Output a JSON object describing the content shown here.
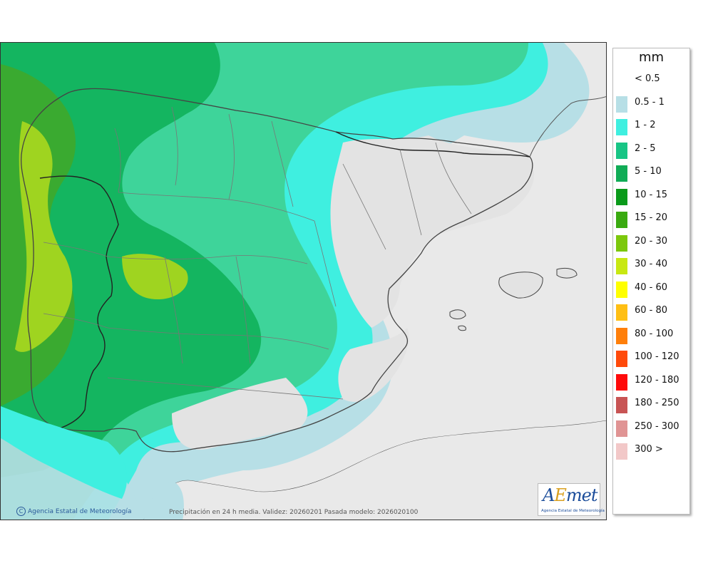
{
  "map": {
    "credit": "Agencia Estatal de Meteorología",
    "copyright_symbol": "C",
    "validity": "Precipitación en 24 h media. Validez: 20260201 Pasada modelo: 2026020100",
    "logo": {
      "text_a": "A",
      "text_e": "E",
      "text_rest": "met",
      "subtitle": "Agencia Estatal de Meteorología"
    }
  },
  "legend": {
    "unit": "mm",
    "items": [
      {
        "label": "< 0.5",
        "color": "#ffffff"
      },
      {
        "label": "0.5 - 1",
        "color": "#b7dfe6"
      },
      {
        "label": "1 - 2",
        "color": "#3fefe0"
      },
      {
        "label": "2 - 5",
        "color": "#18c585"
      },
      {
        "label": "5 - 10",
        "color": "#10ac56"
      },
      {
        "label": "10 - 15",
        "color": "#0a9a1a"
      },
      {
        "label": "15 - 20",
        "color": "#3aaa10"
      },
      {
        "label": "20 - 30",
        "color": "#7cc80c"
      },
      {
        "label": "30 - 40",
        "color": "#c8e812"
      },
      {
        "label": "40 - 60",
        "color": "#ffff00"
      },
      {
        "label": "60 - 80",
        "color": "#ffbf14"
      },
      {
        "label": "80 - 100",
        "color": "#ff7f0a"
      },
      {
        "label": "100 - 120",
        "color": "#ff4a0a"
      },
      {
        "label": "120 - 180",
        "color": "#ff0a0a"
      },
      {
        "label": "180 - 250",
        "color": "#c85454"
      },
      {
        "label": "250 - 300",
        "color": "#e09494"
      },
      {
        "label": "300 >",
        "color": "#f2c8c8"
      }
    ]
  }
}
